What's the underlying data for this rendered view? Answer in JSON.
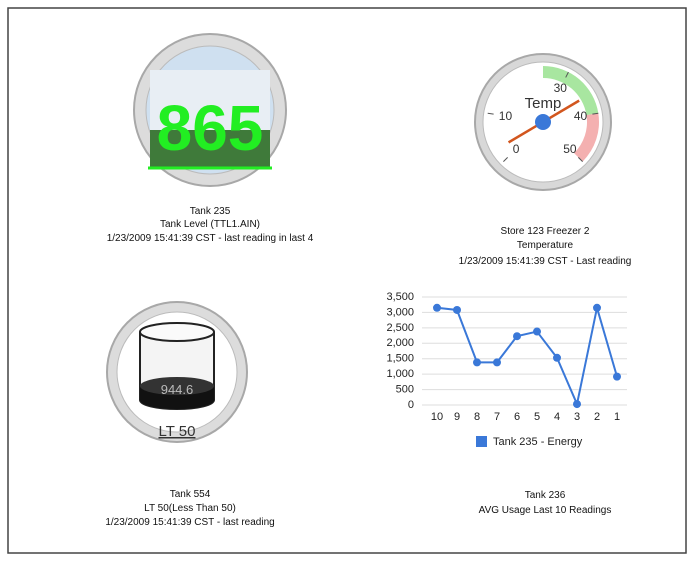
{
  "tank_level": {
    "value": "865",
    "name": "Tank 235",
    "description": "Tank Level (TTL1.AIN)",
    "status": "1/23/2009 15:41:39 CST - last reading in last 4"
  },
  "gauge": {
    "label": "Temp",
    "value": 36,
    "range": [
      0,
      50
    ],
    "ticks": [
      0,
      10,
      30,
      40,
      50
    ],
    "bands": [
      {
        "from": 25,
        "to": 40,
        "color": "#a8e6a0"
      },
      {
        "from": 40,
        "to": 50,
        "color": "#f4b0b0"
      }
    ],
    "name": "Store 123 Freezer 2",
    "description": "Temperature",
    "status": "1/23/2009 15:41:39 CST - Last reading"
  },
  "tank_lt50": {
    "value": "944.6",
    "label": "LT 50",
    "name": "Tank 554",
    "description": "LT 50(Less Than 50)",
    "status": "1/23/2009 15:41:39 CST - last reading"
  },
  "chart_data": {
    "type": "line",
    "title": "Tank 236",
    "subtitle": "AVG Usage Last 10 Readings",
    "categories": [
      "10",
      "9",
      "8",
      "7",
      "6",
      "5",
      "4",
      "3",
      "2",
      "1"
    ],
    "series": [
      {
        "name": "Tank 235 - Energy",
        "color": "#3a78d8",
        "values": [
          3150,
          3080,
          1380,
          1380,
          2230,
          2380,
          1530,
          30,
          3150,
          920
        ]
      }
    ],
    "ylim": [
      0,
      3500
    ],
    "yticks": [
      0,
      {
        "value": 500,
        "label": "500"
      },
      {
        "value": 1000,
        "label": "1,000"
      },
      {
        "value": 1500,
        "label": "1,500"
      },
      {
        "value": 2000,
        "label": "2,000"
      },
      {
        "value": 2500,
        "label": "2,500"
      },
      {
        "value": 3000,
        "label": "3,000"
      },
      {
        "value": 3500,
        "label": "3,500"
      }
    ],
    "grid": true,
    "legend": "bottom"
  }
}
